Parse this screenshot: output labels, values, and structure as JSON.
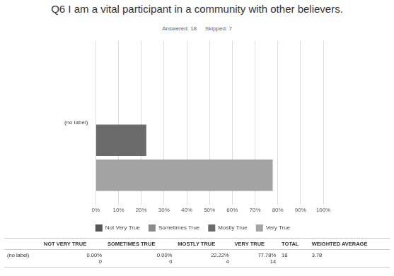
{
  "chart_data": {
    "type": "bar",
    "title": "Q6 I am a vital participant in a community with other believers.",
    "annotations": [
      "Answered: 18",
      "Skipped: 7"
    ],
    "orientation": "horizontal",
    "categories": [
      "(no label)"
    ],
    "series": [
      {
        "name": "Not Very True",
        "color": "#555555",
        "values": [
          0
        ]
      },
      {
        "name": "Sometimes True",
        "color": "#8a8a8a",
        "values": [
          0
        ]
      },
      {
        "name": "Mostly True",
        "color": "#6b6b6b",
        "values": [
          22.22
        ]
      },
      {
        "name": "Very True",
        "color": "#a3a3a3",
        "values": [
          77.78
        ]
      }
    ],
    "xlim": [
      0,
      100
    ],
    "xticks": [
      {
        "value": 0,
        "label": "0%"
      },
      {
        "value": 10,
        "label": "10%"
      },
      {
        "value": 20,
        "label": "20%"
      },
      {
        "value": 30,
        "label": "30%"
      },
      {
        "value": 40,
        "label": "40%"
      },
      {
        "value": 50,
        "label": "50%"
      },
      {
        "value": 60,
        "label": "60%"
      },
      {
        "value": 70,
        "label": "70%"
      },
      {
        "value": 80,
        "label": "80%"
      },
      {
        "value": 90,
        "label": "90%"
      },
      {
        "value": 100,
        "label": "100%"
      }
    ],
    "grid": true,
    "legend": "bottom"
  },
  "table": {
    "header": [
      "NOT VERY TRUE",
      "SOMETIMES TRUE",
      "MOSTLY TRUE",
      "VERY TRUE",
      "TOTAL",
      "WEIGHTED AVERAGE"
    ],
    "rows": [
      {
        "label": "(no label)",
        "cells": [
          [
            "0.00%",
            "0"
          ],
          [
            "0.00%",
            "0"
          ],
          [
            "22.22%",
            "4"
          ],
          [
            "77.78%",
            "14"
          ]
        ],
        "total": "18",
        "weighted_average": "3.78"
      }
    ]
  }
}
